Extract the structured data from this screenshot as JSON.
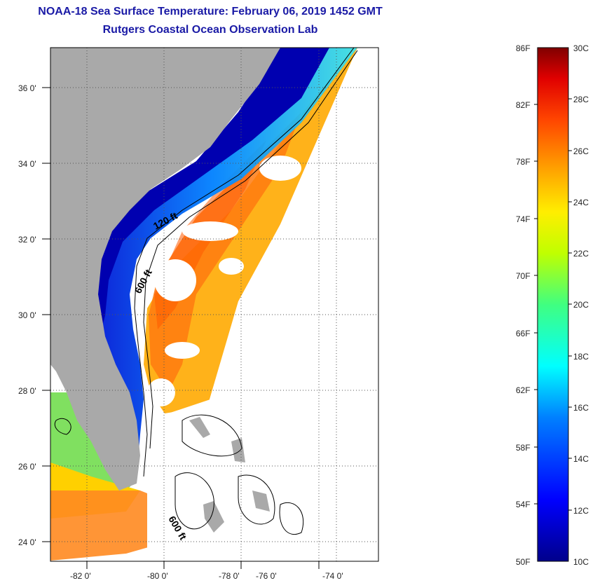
{
  "header": {
    "title": "NOAA-18 Sea Surface Temperature:  February 06, 2019 1452 GMT",
    "subtitle": "Rutgers Coastal Ocean Observation Lab"
  },
  "map": {
    "lat_labels": [
      "36 0'",
      "34 0'",
      "32 0'",
      "30 0'",
      "28 0'",
      "26 0'",
      "24 0'"
    ],
    "lon_labels": [
      "-82 0'",
      "-80 0'",
      "-78 0'",
      "-76 0'",
      "-74 0'"
    ],
    "contours": [
      "120 ft",
      "600 ft",
      "600 ft"
    ]
  },
  "colorbar": {
    "fahrenheit": [
      "86F",
      "82F",
      "78F",
      "74F",
      "70F",
      "66F",
      "62F",
      "58F",
      "54F",
      "50F"
    ],
    "celsius": [
      "30C",
      "28C",
      "26C",
      "24C",
      "22C",
      "20C",
      "18C",
      "16C",
      "14C",
      "12C",
      "10C"
    ]
  },
  "colors": {
    "land": "#a9a9a9",
    "cold": "#00008b",
    "warm": "#ff6a00",
    "hot": "#8b0000"
  }
}
